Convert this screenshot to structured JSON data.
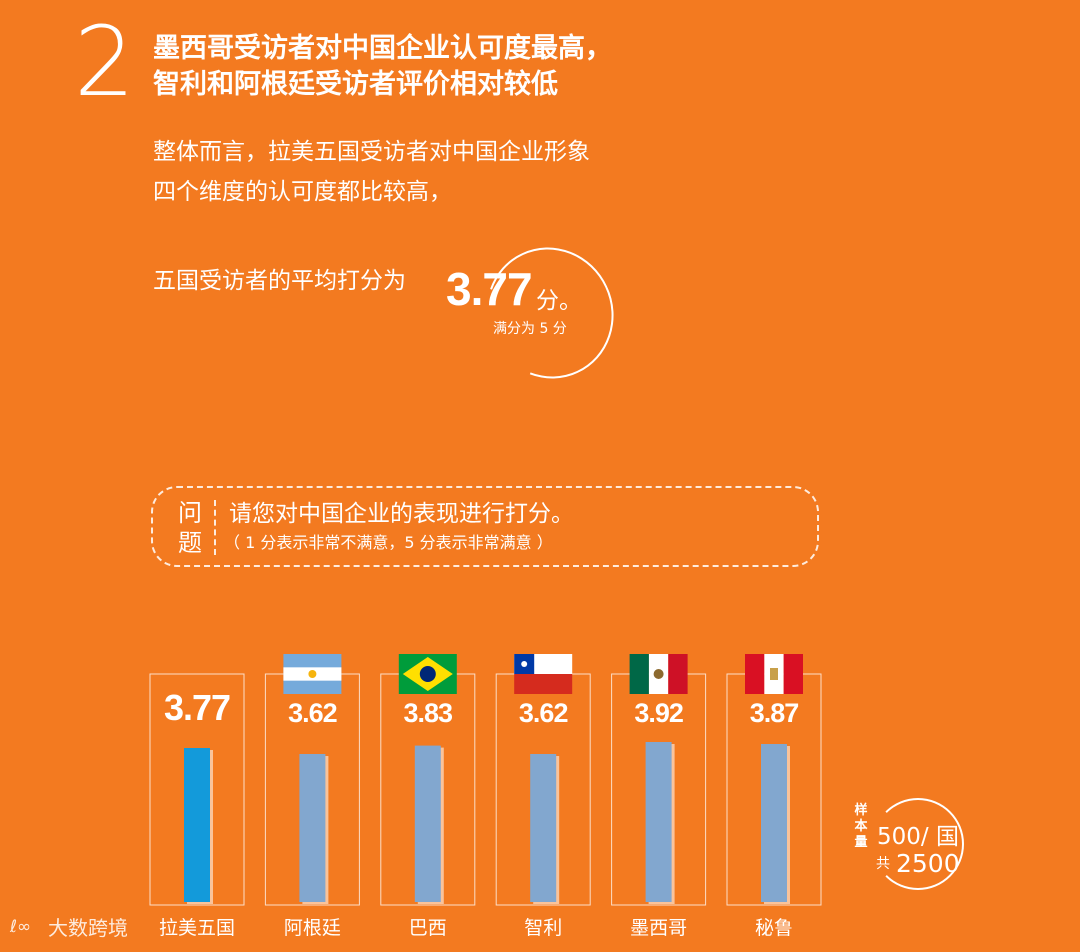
{
  "section": {
    "number": "2",
    "headline_line1": "墨西哥受访者对中国企业认可度最高，",
    "headline_line2": "智利和阿根廷受访者评价相对较低"
  },
  "intro": {
    "line1": "整体而言，拉美五国受访者对中国企业形象",
    "line2": "四个维度的认可度都比较高，",
    "avg_prefix": "五国受访者的平均打分为",
    "avg_value": "3.77",
    "avg_unit": "分。",
    "avg_note": "满分为 5 分"
  },
  "question": {
    "tag_top": "问",
    "tag_bottom": "题",
    "text": "请您对中国企业的表现进行打分。",
    "subtext": "（ 1 分表示非常不满意，5 分表示非常满意 ）"
  },
  "sample": {
    "label": "样本量",
    "per_country": "500/ 国",
    "total_label": "共",
    "total": "2500"
  },
  "watermark": {
    "icon": "lebo-logo-icon",
    "text": "大数跨境"
  },
  "colors": {
    "background": "#F37A20",
    "bar_highlight": "#139ADA",
    "bar_default": "#82A7CF"
  },
  "chart_data": {
    "type": "bar",
    "categories": [
      "拉美五国",
      "阿根廷",
      "巴西",
      "智利",
      "墨西哥",
      "秘鲁"
    ],
    "values": [
      3.77,
      3.62,
      3.83,
      3.62,
      3.92,
      3.87
    ],
    "value_labels": [
      "3.77",
      "3.62",
      "3.83",
      "3.62",
      "3.92",
      "3.87"
    ],
    "flags": [
      "",
      "argentina-flag",
      "brazil-flag",
      "chile-flag",
      "mexico-flag",
      "peru-flag"
    ],
    "highlight_index": 0,
    "ylim": [
      0,
      5
    ],
    "grid": false,
    "title": "",
    "xlabel": "",
    "ylabel": ""
  }
}
